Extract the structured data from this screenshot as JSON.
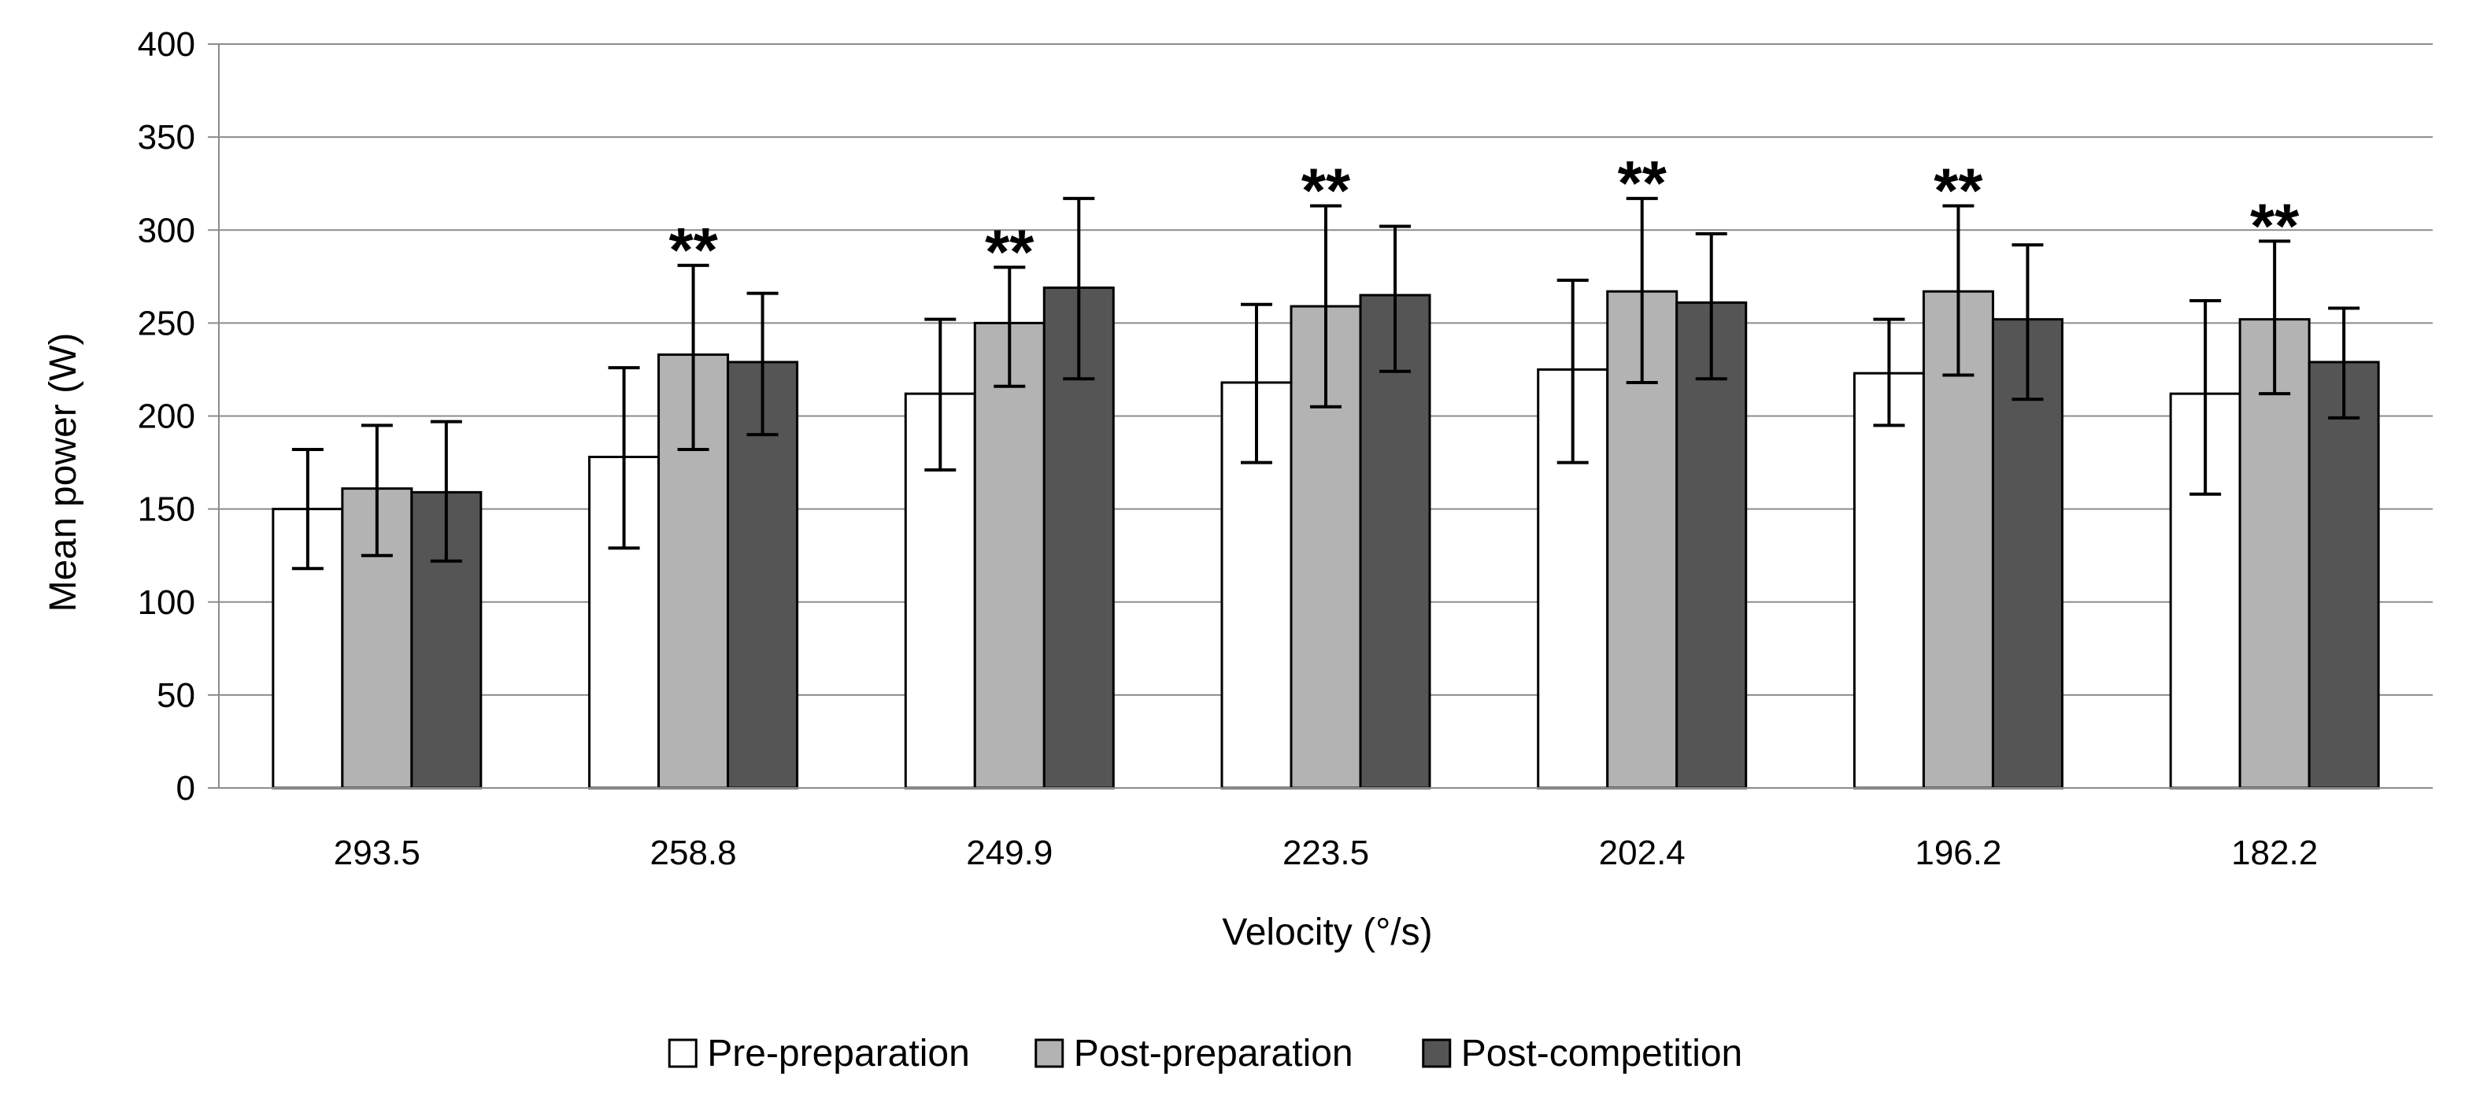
{
  "chart_data": {
    "type": "bar",
    "title": "",
    "xlabel": "Velocity (°/s)",
    "ylabel": "Mean power (W)",
    "ylim": [
      0,
      400
    ],
    "yticks": [
      0,
      50,
      100,
      150,
      200,
      250,
      300,
      350,
      400
    ],
    "grid": true,
    "legend_position": "bottom",
    "categories": [
      "293.5",
      "258.8",
      "249.9",
      "223.5",
      "202.4",
      "196.2",
      "182.2"
    ],
    "series": [
      {
        "name": "Pre-preparation",
        "color": "#ffffff",
        "values": [
          150,
          178,
          212,
          218,
          225,
          223,
          212
        ],
        "error_low": [
          118,
          129,
          171,
          175,
          175,
          195,
          158
        ],
        "error_high": [
          182,
          226,
          252,
          260,
          273,
          252,
          262
        ]
      },
      {
        "name": "Post-preparation",
        "color": "#b3b3b3",
        "values": [
          161,
          233,
          250,
          259,
          267,
          267,
          252
        ],
        "error_low": [
          125,
          182,
          216,
          205,
          218,
          222,
          212
        ],
        "error_high": [
          195,
          281,
          280,
          313,
          317,
          313,
          294
        ]
      },
      {
        "name": "Post-competition",
        "color": "#555555",
        "values": [
          159,
          229,
          269,
          265,
          261,
          252,
          229
        ],
        "error_low": [
          122,
          190,
          220,
          224,
          220,
          209,
          199
        ],
        "error_high": [
          197,
          266,
          317,
          302,
          298,
          292,
          258
        ]
      }
    ],
    "annotations": [
      {
        "category": "293.5",
        "text": ""
      },
      {
        "category": "258.8",
        "text": "**"
      },
      {
        "category": "249.9",
        "text": "**"
      },
      {
        "category": "223.5",
        "text": "**"
      },
      {
        "category": "202.4",
        "text": "**"
      },
      {
        "category": "196.2",
        "text": "**"
      },
      {
        "category": "182.2",
        "text": "**"
      }
    ]
  }
}
